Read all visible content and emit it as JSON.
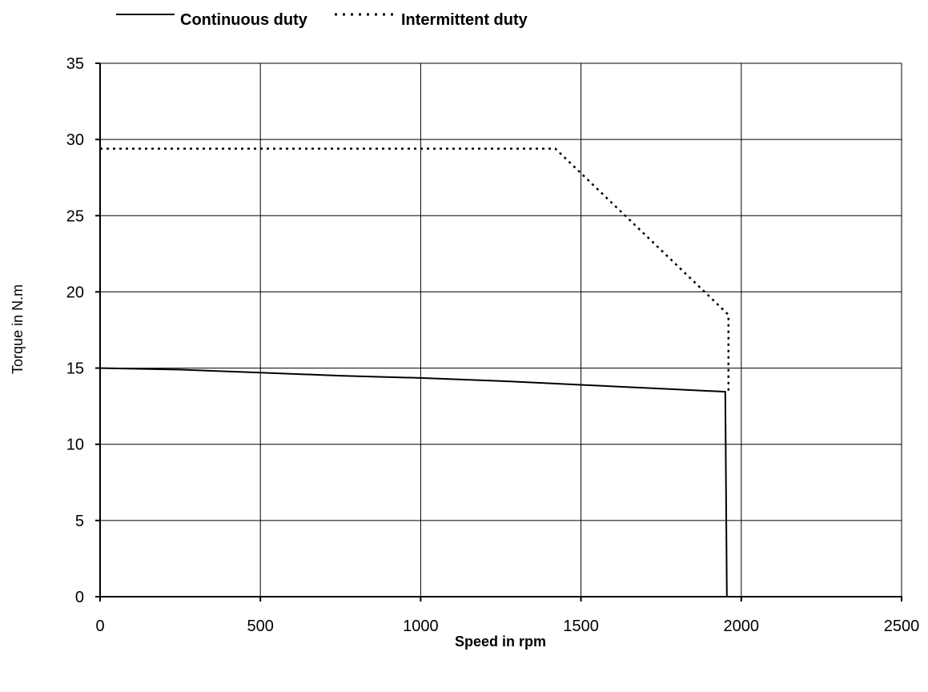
{
  "chart_data": {
    "type": "line",
    "xlabel": "Speed in rpm",
    "ylabel": "Torque in N.m",
    "xlim": [
      0,
      2500
    ],
    "ylim": [
      0,
      35
    ],
    "x_ticks": [
      0,
      500,
      1000,
      1500,
      2000,
      2500
    ],
    "y_ticks": [
      0,
      5,
      10,
      15,
      20,
      25,
      30,
      35
    ],
    "grid": true,
    "legend_position": "top",
    "series": [
      {
        "name": "Continuous duty",
        "style": "solid",
        "color": "#000000",
        "points": [
          [
            0,
            15.0
          ],
          [
            250,
            14.9
          ],
          [
            500,
            14.7
          ],
          [
            750,
            14.5
          ],
          [
            1000,
            14.35
          ],
          [
            1250,
            14.15
          ],
          [
            1500,
            13.9
          ],
          [
            1750,
            13.65
          ],
          [
            1950,
            13.45
          ],
          [
            1955,
            0
          ]
        ]
      },
      {
        "name": "Intermittent duty",
        "style": "dotted",
        "color": "#000000",
        "points": [
          [
            0,
            29.4
          ],
          [
            1420,
            29.4
          ],
          [
            1960,
            18.5
          ],
          [
            1960,
            13.5
          ]
        ]
      }
    ]
  }
}
